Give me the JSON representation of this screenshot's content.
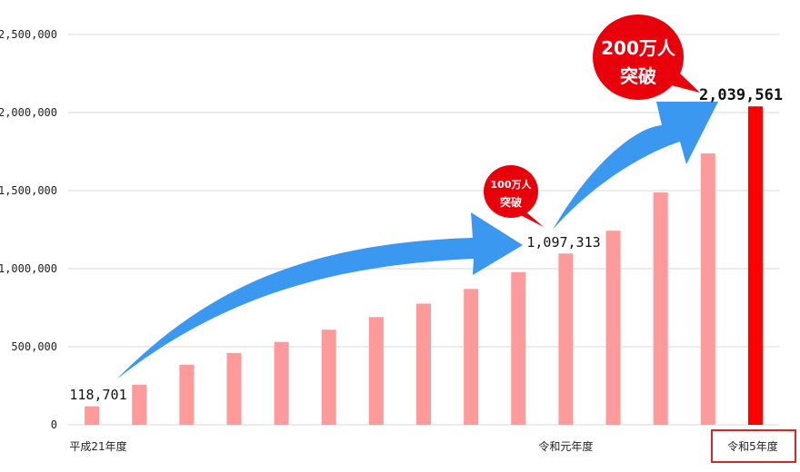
{
  "chart_data": {
    "type": "bar",
    "ylim": [
      0,
      2500000
    ],
    "yticks": [
      0,
      500000,
      1000000,
      1500000,
      2000000,
      2500000
    ],
    "ytick_labels": [
      "0",
      "500,000",
      "1,000,000",
      "1,500,000",
      "2,000,000",
      "2,500,000"
    ],
    "grid": true,
    "categories": [
      "平成21年度",
      "",
      "",
      "",
      "",
      "",
      "",
      "",
      "",
      "",
      "令和元年度",
      "",
      "",
      "",
      "令和5年度"
    ],
    "values": [
      118701,
      257000,
      385000,
      460000,
      531000,
      609000,
      690000,
      776000,
      870000,
      978000,
      1097313,
      1243000,
      1488000,
      1738000,
      2039561
    ],
    "colors": {
      "bar": "#ff9a9a",
      "highlight_bar": "#ff0000",
      "arrow": "#3a98f0",
      "bubble": "#e8000b",
      "grid": "#d9d9d9",
      "highlight_box": "#d62728"
    },
    "data_labels": [
      {
        "index": 0,
        "text": "118,701"
      },
      {
        "index": 10,
        "text": "1,097,313"
      },
      {
        "index": 14,
        "text": "2,039,561"
      }
    ],
    "annotations": {
      "small_bubble": {
        "line1": "100万人",
        "line2": "突破"
      },
      "large_bubble": {
        "line1": "200万人",
        "line2": "突破"
      }
    }
  }
}
